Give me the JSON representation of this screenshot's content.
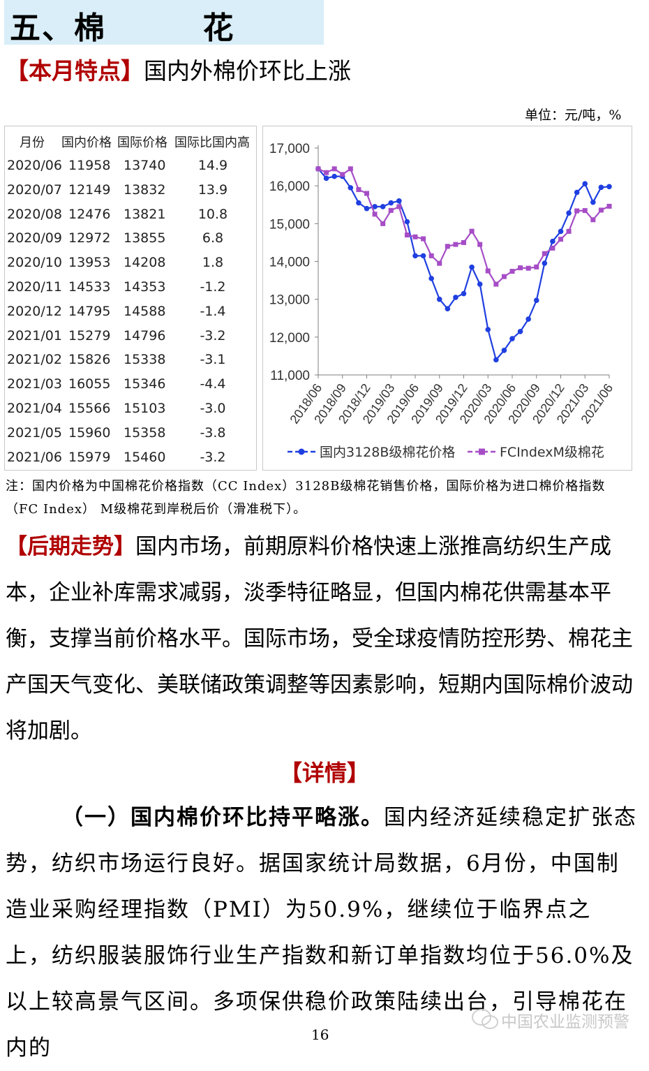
{
  "section": {
    "title": "五、棉        花"
  },
  "feature": {
    "tag": "【本月特点】",
    "text": "国内外棉价环比上涨"
  },
  "unit": "单位：元/吨，%",
  "table": {
    "headers": [
      "月份",
      "国内价格",
      "国际价格",
      "国际比国内高"
    ],
    "rows": [
      [
        "2020/06",
        "11958",
        "13740",
        "14.9"
      ],
      [
        "2020/07",
        "12149",
        "13832",
        "13.9"
      ],
      [
        "2020/08",
        "12476",
        "13821",
        "10.8"
      ],
      [
        "2020/09",
        "12972",
        "13855",
        "6.8"
      ],
      [
        "2020/10",
        "13953",
        "14208",
        "1.8"
      ],
      [
        "2020/11",
        "14533",
        "14353",
        "-1.2"
      ],
      [
        "2020/12",
        "14795",
        "14588",
        "-1.4"
      ],
      [
        "2021/01",
        "15279",
        "14796",
        "-3.2"
      ],
      [
        "2021/02",
        "15826",
        "15338",
        "-3.1"
      ],
      [
        "2021/03",
        "16055",
        "15346",
        "-4.4"
      ],
      [
        "2021/04",
        "15566",
        "15103",
        "-3.0"
      ],
      [
        "2021/05",
        "15960",
        "15358",
        "-3.8"
      ],
      [
        "2021/06",
        "15979",
        "15460",
        "-3.2"
      ]
    ]
  },
  "chart_data": {
    "type": "line",
    "title": "",
    "ylim": [
      11000,
      17000
    ],
    "yticks": [
      "11,000",
      "12,000",
      "13,000",
      "14,000",
      "15,000",
      "16,000",
      "17,000"
    ],
    "x_tick_labels": [
      "2018/06",
      "2018/09",
      "2018/12",
      "2019/03",
      "2019/06",
      "2019/09",
      "2019/12",
      "2020/03",
      "2020/06",
      "2020/09",
      "2020/12",
      "2021/03",
      "2021/06"
    ],
    "x": [
      "2018/06",
      "2018/07",
      "2018/08",
      "2018/09",
      "2018/10",
      "2018/11",
      "2018/12",
      "2019/01",
      "2019/02",
      "2019/03",
      "2019/04",
      "2019/05",
      "2019/06",
      "2019/07",
      "2019/08",
      "2019/09",
      "2019/10",
      "2019/11",
      "2019/12",
      "2020/01",
      "2020/02",
      "2020/03",
      "2020/04",
      "2020/05",
      "2020/06",
      "2020/07",
      "2020/08",
      "2020/09",
      "2020/10",
      "2020/11",
      "2020/12",
      "2021/01",
      "2021/02",
      "2021/03",
      "2021/04",
      "2021/05",
      "2021/06"
    ],
    "series": [
      {
        "name": "国内3128B级棉花价格",
        "color": "#1f3fe0",
        "marker": "circle",
        "values": [
          16450,
          16200,
          16250,
          16250,
          15950,
          15550,
          15400,
          15450,
          15450,
          15550,
          15600,
          15050,
          14150,
          14150,
          13550,
          13000,
          12750,
          13050,
          13150,
          13850,
          13400,
          12200,
          11400,
          11650,
          11958,
          12149,
          12476,
          12972,
          13953,
          14533,
          14795,
          15279,
          15826,
          16055,
          15566,
          15960,
          15979
        ]
      },
      {
        "name": "FCIndexM级棉花",
        "color": "#a64dc6",
        "marker": "square",
        "values": [
          16450,
          16350,
          16450,
          16300,
          16450,
          15900,
          15800,
          15250,
          15000,
          15350,
          15450,
          14700,
          14650,
          14600,
          14150,
          13950,
          14400,
          14450,
          14500,
          14800,
          14450,
          13750,
          13400,
          13600,
          13740,
          13832,
          13821,
          13855,
          14208,
          14353,
          14588,
          14796,
          15338,
          15346,
          15103,
          15358,
          15460
        ]
      }
    ],
    "legend_position": "bottom"
  },
  "note": "注：国内价格为中国棉花价格指数（CC Index）3128B级棉花销售价格，国际价格为进口棉价格指数（FC Index） M级棉花到岸税后价（滑准税下）。",
  "trend": {
    "tag": "【后期走势】",
    "text": "国内市场，前期原料价格快速上涨推高纺织生产成本，企业补库需求减弱，淡季特征略显，但国内棉花供需基本平衡，支撑当前价格水平。国际市场，受全球疫情防控形势、棉花主产国天气变化、美联储政策调整等因素影响，短期内国际棉价波动将加剧。"
  },
  "detail": {
    "heading": "【详情】",
    "bold": "（一）国内棉价环比持平略涨。",
    "text": "国内经济延续稳定扩张态势，纺织市场运行良好。据国家统计局数据，6月份，中国制造业采购经理指数（PMI）为50.9%，继续位于临界点之上，纺织服装服饰行业生产指数和新订单指数均位于56.0%及以上较高景气区间。多项保供稳价政策陆续出台，引导棉花在内的"
  },
  "page_number": "16",
  "watermark": "中国农业监测预警"
}
